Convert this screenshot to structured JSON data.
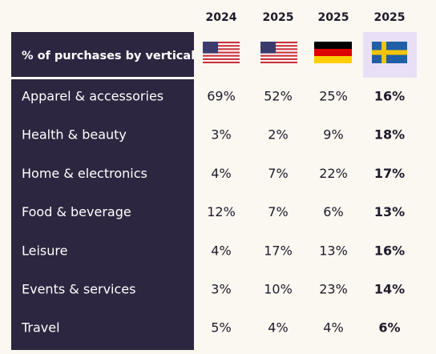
{
  "table": {
    "header_label": "% of purchases by vertical",
    "columns": [
      "2024",
      "2025",
      "2025",
      "2025"
    ],
    "rows": [
      {
        "label": "Apparel & accessories",
        "cells": [
          "69%",
          "52%",
          "25%",
          "16%"
        ]
      },
      {
        "label": "Health & beauty",
        "cells": [
          "3%",
          "2%",
          "9%",
          "18%"
        ]
      },
      {
        "label": "Home & electronics",
        "cells": [
          "4%",
          "7%",
          "22%",
          "17%"
        ]
      },
      {
        "label": "Food & beverage",
        "cells": [
          "12%",
          "7%",
          "6%",
          "13%"
        ]
      },
      {
        "label": "Leisure",
        "cells": [
          "4%",
          "17%",
          "13%",
          "16%"
        ]
      },
      {
        "label": "Events & services",
        "cells": [
          "3%",
          "10%",
          "23%",
          "14%"
        ]
      },
      {
        "label": "Travel",
        "cells": [
          "5%",
          "4%",
          "4%",
          "6%"
        ]
      }
    ]
  }
}
